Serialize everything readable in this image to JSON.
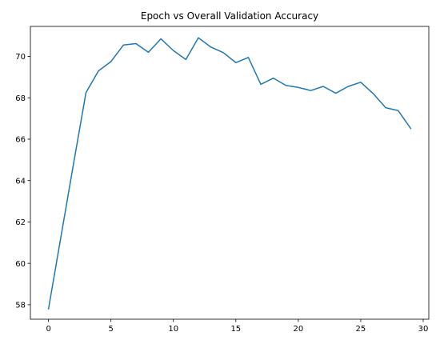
{
  "chart_data": {
    "type": "line",
    "title": "Epoch vs Overall Validation Accuracy",
    "xlabel": "",
    "ylabel": "",
    "xlim": [
      -1.45,
      30.45
    ],
    "ylim": [
      57.3,
      71.45
    ],
    "xticks": [
      0,
      5,
      10,
      15,
      20,
      25,
      30
    ],
    "yticks": [
      58,
      60,
      62,
      64,
      66,
      68,
      70
    ],
    "grid": false,
    "legend": "none",
    "series": [
      {
        "color": "#1f77b4",
        "x": [
          0,
          1,
          2,
          3,
          4,
          5,
          6,
          7,
          8,
          9,
          10,
          11,
          12,
          13,
          14,
          15,
          16,
          17,
          18,
          19,
          20,
          21,
          22,
          23,
          24,
          25,
          26,
          27,
          28,
          29
        ],
        "y": [
          57.8,
          61.3,
          64.8,
          68.25,
          69.3,
          69.75,
          70.55,
          70.62,
          70.2,
          70.85,
          70.28,
          69.85,
          70.9,
          70.45,
          70.18,
          69.7,
          69.95,
          68.65,
          68.95,
          68.6,
          68.5,
          68.35,
          68.55,
          68.22,
          68.55,
          68.75,
          68.2,
          67.52,
          67.38,
          66.52
        ]
      }
    ]
  }
}
